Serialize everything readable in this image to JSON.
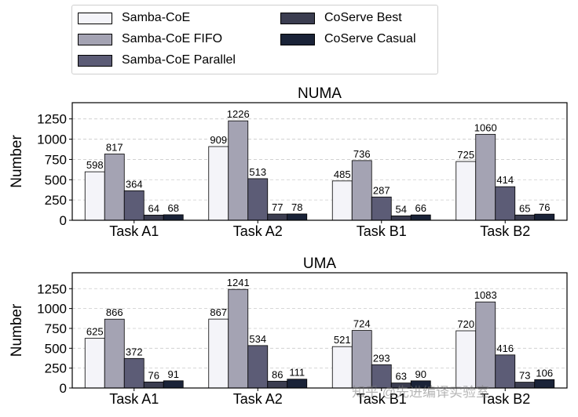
{
  "colors": {
    "Samba-CoE": "#f4f4f9",
    "Samba-CoE FIFO": "#a4a3b3",
    "Samba-CoE Parallel": "#5c5c76",
    "CoServe Best": "#3b3d50",
    "CoServe Casual": "#1a2338"
  },
  "legend": {
    "items": [
      "Samba-CoE",
      "Samba-CoE FIFO",
      "Samba-CoE Parallel",
      "CoServe Best",
      "CoServe Casual"
    ]
  },
  "chart_data": [
    {
      "type": "bar",
      "title": "NUMA",
      "xlabel": "",
      "ylabel": "Number",
      "ylim": [
        0,
        1450
      ],
      "yticks": [
        0,
        250,
        500,
        750,
        1000,
        1250
      ],
      "grid": true,
      "categories": [
        "Task A1",
        "Task A2",
        "Task B1",
        "Task B2"
      ],
      "series": [
        {
          "name": "Samba-CoE",
          "values": [
            598,
            909,
            485,
            725
          ]
        },
        {
          "name": "Samba-CoE FIFO",
          "values": [
            817,
            1226,
            736,
            1060
          ]
        },
        {
          "name": "Samba-CoE Parallel",
          "values": [
            364,
            513,
            287,
            414
          ]
        },
        {
          "name": "CoServe Best",
          "values": [
            64,
            77,
            54,
            65
          ]
        },
        {
          "name": "CoServe Casual",
          "values": [
            68,
            78,
            66,
            76
          ]
        }
      ]
    },
    {
      "type": "bar",
      "title": "UMA",
      "xlabel": "",
      "ylabel": "Number",
      "ylim": [
        0,
        1450
      ],
      "yticks": [
        0,
        250,
        500,
        750,
        1000,
        1250
      ],
      "grid": true,
      "categories": [
        "Task A1",
        "Task A2",
        "Task B1",
        "Task B2"
      ],
      "series": [
        {
          "name": "Samba-CoE",
          "values": [
            625,
            867,
            521,
            720
          ]
        },
        {
          "name": "Samba-CoE FIFO",
          "values": [
            866,
            1241,
            724,
            1083
          ]
        },
        {
          "name": "Samba-CoE Parallel",
          "values": [
            372,
            534,
            293,
            416
          ]
        },
        {
          "name": "CoServe Best",
          "values": [
            76,
            86,
            63,
            73
          ]
        },
        {
          "name": "CoServe Casual",
          "values": [
            91,
            111,
            90,
            106
          ]
        }
      ]
    }
  ],
  "watermark": "知乎 @先进编译实验室"
}
